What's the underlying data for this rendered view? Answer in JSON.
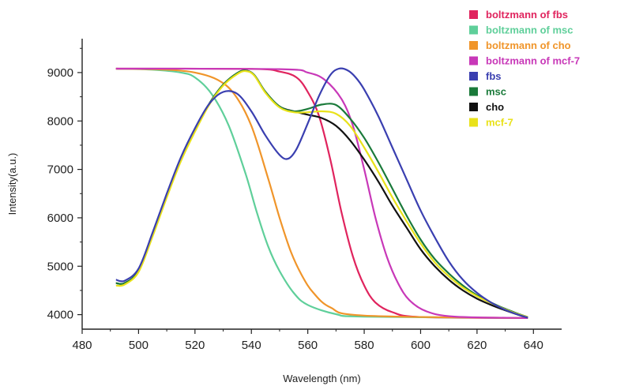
{
  "chart_data": {
    "type": "line",
    "xlabel": "Wavelength (nm)",
    "ylabel": "Intensity(a.u.)",
    "xlim": [
      480,
      650
    ],
    "ylim": [
      3700,
      9700
    ],
    "x_ticks": [
      480,
      500,
      520,
      540,
      560,
      580,
      600,
      620,
      640
    ],
    "y_ticks": [
      4000,
      5000,
      6000,
      7000,
      8000,
      9000
    ],
    "grid": false,
    "legend_position": "top-right",
    "series": [
      {
        "name": "boltzmann of fbs",
        "color": "#e0245e",
        "x": [
          492,
          540,
          550,
          556,
          560,
          564,
          568,
          572,
          576,
          580,
          584,
          590,
          600,
          638
        ],
        "y": [
          9080,
          9075,
          9020,
          8900,
          8600,
          8100,
          7200,
          6100,
          5200,
          4600,
          4250,
          4050,
          3950,
          3930
        ]
      },
      {
        "name": "boltzmann of msc",
        "color": "#5fcf9a",
        "x": [
          492,
          505,
          515,
          520,
          526,
          532,
          538,
          542,
          546,
          550,
          555,
          560,
          570,
          580,
          638
        ],
        "y": [
          9080,
          9060,
          9000,
          8900,
          8550,
          7900,
          6900,
          6100,
          5400,
          4900,
          4450,
          4200,
          4010,
          3960,
          3930
        ]
      },
      {
        "name": "boltzmann of cho",
        "color": "#f0952a",
        "x": [
          492,
          510,
          520,
          528,
          534,
          540,
          546,
          550,
          554,
          558,
          562,
          568,
          580,
          638
        ],
        "y": [
          9080,
          9060,
          9000,
          8850,
          8550,
          7900,
          6800,
          6000,
          5300,
          4800,
          4450,
          4150,
          3980,
          3930
        ]
      },
      {
        "name": "boltzmann of mcf-7",
        "color": "#c838b8",
        "x": [
          492,
          550,
          560,
          566,
          572,
          576,
          580,
          584,
          588,
          592,
          596,
          602,
          612,
          638
        ],
        "y": [
          9080,
          9070,
          9000,
          8850,
          8450,
          7900,
          7000,
          6000,
          5200,
          4650,
          4300,
          4070,
          3960,
          3930
        ]
      },
      {
        "name": "fbs",
        "color": "#3a3fb0",
        "x": [
          492,
          495,
          500,
          505,
          510,
          515,
          520,
          525,
          530,
          535,
          540,
          545,
          550,
          553,
          556,
          560,
          564,
          568,
          571,
          574,
          577,
          580,
          585,
          590,
          595,
          600,
          605,
          610,
          615,
          620,
          625,
          630,
          635,
          638
        ],
        "y": [
          4720,
          4700,
          4950,
          5700,
          6500,
          7250,
          7850,
          8350,
          8600,
          8560,
          8200,
          7700,
          7300,
          7220,
          7420,
          7950,
          8520,
          8950,
          9080,
          9050,
          8900,
          8650,
          8100,
          7450,
          6800,
          6150,
          5600,
          5100,
          4720,
          4450,
          4250,
          4100,
          3990,
          3940
        ]
      },
      {
        "name": "msc",
        "color": "#1a7a3a",
        "x": [
          492,
          495,
          500,
          505,
          510,
          515,
          520,
          525,
          530,
          535,
          538,
          541,
          545,
          550,
          555,
          560,
          565,
          570,
          575,
          580,
          585,
          590,
          595,
          600,
          605,
          610,
          615,
          620,
          625,
          630,
          635,
          638
        ],
        "y": [
          4650,
          4650,
          4900,
          5650,
          6450,
          7200,
          7800,
          8350,
          8750,
          8990,
          9040,
          8950,
          8600,
          8300,
          8200,
          8250,
          8340,
          8330,
          8050,
          7650,
          7150,
          6600,
          6050,
          5550,
          5150,
          4850,
          4600,
          4400,
          4250,
          4120,
          4010,
          3950
        ]
      },
      {
        "name": "cho",
        "color": "#111111",
        "x": [
          492,
          495,
          500,
          505,
          510,
          515,
          520,
          525,
          530,
          535,
          538,
          541,
          545,
          550,
          555,
          560,
          565,
          570,
          575,
          580,
          585,
          590,
          595,
          600,
          605,
          610,
          615,
          620,
          625,
          630,
          635,
          638
        ],
        "y": [
          4650,
          4650,
          4900,
          5650,
          6450,
          7200,
          7800,
          8350,
          8750,
          8990,
          9040,
          8950,
          8600,
          8300,
          8200,
          8130,
          8060,
          7900,
          7600,
          7200,
          6750,
          6250,
          5800,
          5350,
          5000,
          4720,
          4500,
          4330,
          4200,
          4090,
          3990,
          3940
        ]
      },
      {
        "name": "mcf-7",
        "color": "#e9e21a",
        "x": [
          492,
          495,
          500,
          505,
          510,
          515,
          520,
          525,
          530,
          535,
          538,
          541,
          545,
          550,
          555,
          560,
          565,
          570,
          575,
          580,
          585,
          590,
          595,
          600,
          605,
          610,
          615,
          620,
          625,
          630,
          635,
          638
        ],
        "y": [
          4600,
          4620,
          4880,
          5620,
          6420,
          7170,
          7780,
          8330,
          8730,
          8970,
          9030,
          8940,
          8580,
          8280,
          8180,
          8180,
          8200,
          8150,
          7900,
          7450,
          6950,
          6420,
          5930,
          5470,
          5080,
          4790,
          4560,
          4380,
          4240,
          4110,
          4000,
          3950
        ]
      }
    ]
  }
}
